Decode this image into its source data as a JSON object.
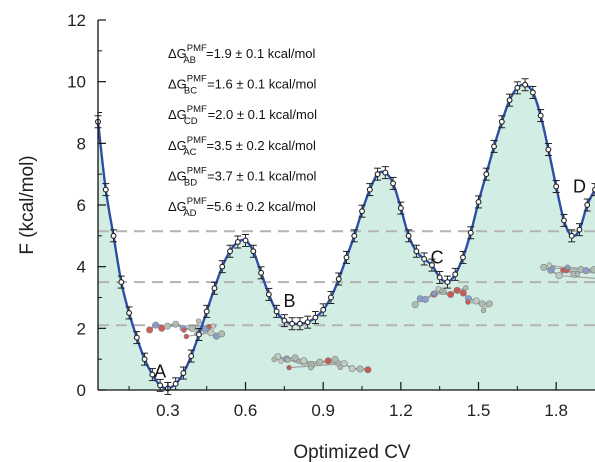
{
  "chart_data": {
    "type": "line",
    "xlabel": "Optimized CV",
    "ylabel": "F (kcal/mol)",
    "xlim": [
      0.03,
      1.95
    ],
    "ylim": [
      0,
      12
    ],
    "x_ticks": [
      "0.3",
      "0.6",
      "0.9",
      "1.2",
      "1.5",
      "1.8"
    ],
    "y_ticks": [
      "0",
      "2",
      "4",
      "6",
      "8",
      "10",
      "12"
    ],
    "grid": false,
    "fill_color": "#d2eee4",
    "line_color": "#2c4fa3",
    "marker_color": "#222222",
    "dashed_levels": [
      2.1,
      3.5,
      5.15
    ],
    "series": [
      {
        "x": [
          0.03,
          0.06,
          0.09,
          0.12,
          0.15,
          0.18,
          0.21,
          0.24,
          0.27,
          0.3,
          0.33,
          0.36,
          0.39,
          0.42,
          0.45,
          0.48,
          0.51,
          0.54,
          0.57,
          0.6,
          0.63,
          0.66,
          0.69,
          0.72,
          0.75,
          0.78,
          0.81,
          0.84,
          0.87,
          0.9,
          0.93,
          0.96,
          0.99,
          1.02,
          1.05,
          1.08,
          1.11,
          1.14,
          1.17,
          1.2,
          1.23,
          1.26,
          1.29,
          1.32,
          1.35,
          1.38,
          1.41,
          1.44,
          1.47,
          1.5,
          1.53,
          1.56,
          1.59,
          1.62,
          1.65,
          1.68,
          1.71,
          1.74,
          1.77,
          1.8,
          1.83,
          1.86,
          1.89,
          1.92,
          1.95
        ],
        "y": [
          8.7,
          6.5,
          5.0,
          3.5,
          2.5,
          1.7,
          1.0,
          0.5,
          0.15,
          0.05,
          0.2,
          0.55,
          1.1,
          1.8,
          2.55,
          3.3,
          4.0,
          4.5,
          4.8,
          4.85,
          4.5,
          3.8,
          3.1,
          2.55,
          2.25,
          2.15,
          2.15,
          2.2,
          2.35,
          2.6,
          3.0,
          3.6,
          4.3,
          5.0,
          5.8,
          6.5,
          7.0,
          7.05,
          6.7,
          5.9,
          5.0,
          4.5,
          4.25,
          4.05,
          3.65,
          3.5,
          3.75,
          4.3,
          5.1,
          6.1,
          7.0,
          7.9,
          8.7,
          9.4,
          9.8,
          9.9,
          9.65,
          8.9,
          7.8,
          6.6,
          5.5,
          5.0,
          5.2,
          6.0,
          6.5
        ]
      }
    ],
    "state_labels": [
      {
        "text": "A",
        "x": 0.27,
        "y": 0.4
      },
      {
        "text": "B",
        "x": 0.77,
        "y": 2.7
      },
      {
        "text": "C",
        "x": 1.34,
        "y": 4.1
      },
      {
        "text": "D",
        "x": 1.89,
        "y": 6.4
      }
    ],
    "annotations": [
      {
        "pre": "ΔG",
        "sup": "PMF",
        "sub": "AB",
        "post": "=1.9 ± 0.1 kcal/mol"
      },
      {
        "pre": "ΔG",
        "sup": "PMF",
        "sub": "BC",
        "post": "=1.6 ± 0.1 kcal/mol"
      },
      {
        "pre": "ΔG",
        "sup": "PMF",
        "sub": "CD",
        "post": "=2.0 ± 0.1 kcal/mol"
      },
      {
        "pre": "ΔG",
        "sup": "PMF",
        "sub": "AC",
        "post": "=3.5 ± 0.2 kcal/mol"
      },
      {
        "pre": "ΔG",
        "sup": "PMF",
        "sub": "BD",
        "post": "=3.7 ± 0.1 kcal/mol"
      },
      {
        "pre": "ΔG",
        "sup": "PMF",
        "sub": "AD",
        "post": "=5.6 ± 0.2 kcal/mol"
      }
    ]
  }
}
